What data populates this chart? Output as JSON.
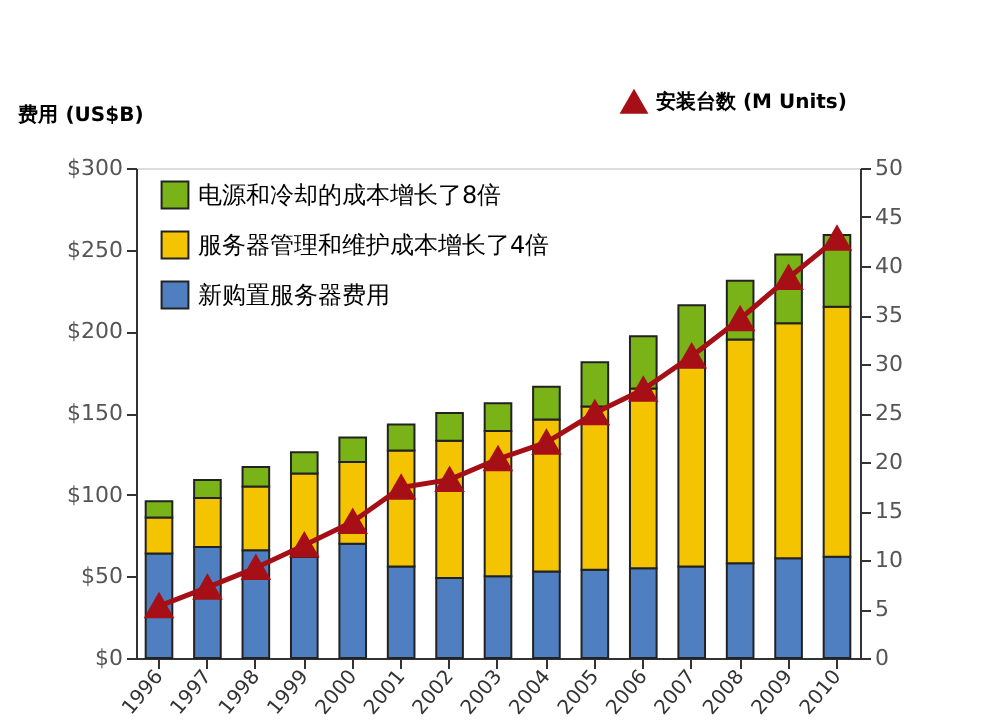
{
  "chart_data": {
    "type": "bar",
    "stacked": true,
    "categories": [
      "1996",
      "1997",
      "1998",
      "1999",
      "2000",
      "2001",
      "2002",
      "2003",
      "2004",
      "2005",
      "2006",
      "2007",
      "2008",
      "2009",
      "2010"
    ],
    "ylabel": "费用 (US$B)",
    "ylim": [
      0,
      300
    ],
    "yticks": [
      {
        "value": 0,
        "label": "$0"
      },
      {
        "value": 50,
        "label": "$50"
      },
      {
        "value": 100,
        "label": "$100"
      },
      {
        "value": 150,
        "label": "$150"
      },
      {
        "value": 200,
        "label": "$200"
      },
      {
        "value": 250,
        "label": "$250"
      },
      {
        "value": 300,
        "label": "$300"
      }
    ],
    "y2lim": [
      0,
      50
    ],
    "y2ticks": [
      0,
      5,
      10,
      15,
      20,
      25,
      30,
      35,
      40,
      45,
      50
    ],
    "legend": "top left",
    "grid": false,
    "series": [
      {
        "name": "新购置服务器费用",
        "color": "#4f7fc0",
        "values": [
          64,
          68,
          66,
          62,
          70,
          56,
          49,
          50,
          53,
          54,
          55,
          56,
          58,
          61,
          62
        ]
      },
      {
        "name": "服务器管理和维护成本增长了4倍",
        "color": "#f5c400",
        "values": [
          22,
          30,
          39,
          51,
          50,
          71,
          84,
          89,
          93,
          100,
          110,
          122,
          137,
          144,
          153
        ]
      },
      {
        "name": "电源和冷却的成本增长了8倍",
        "color": "#7ab317",
        "values": [
          10,
          11,
          12,
          13,
          15,
          16,
          17,
          17,
          20,
          27,
          32,
          38,
          36,
          42,
          44
        ]
      },
      {
        "name": "安装台数 (M Units)",
        "type": "line",
        "axis": "y2",
        "marker": "triangle",
        "color": "#a50f15",
        "values": [
          5.3,
          7.2,
          9.2,
          11.5,
          13.9,
          17.4,
          18.2,
          20.3,
          22.0,
          25.0,
          27.4,
          30.8,
          34.6,
          38.8,
          42.8
        ]
      }
    ]
  }
}
